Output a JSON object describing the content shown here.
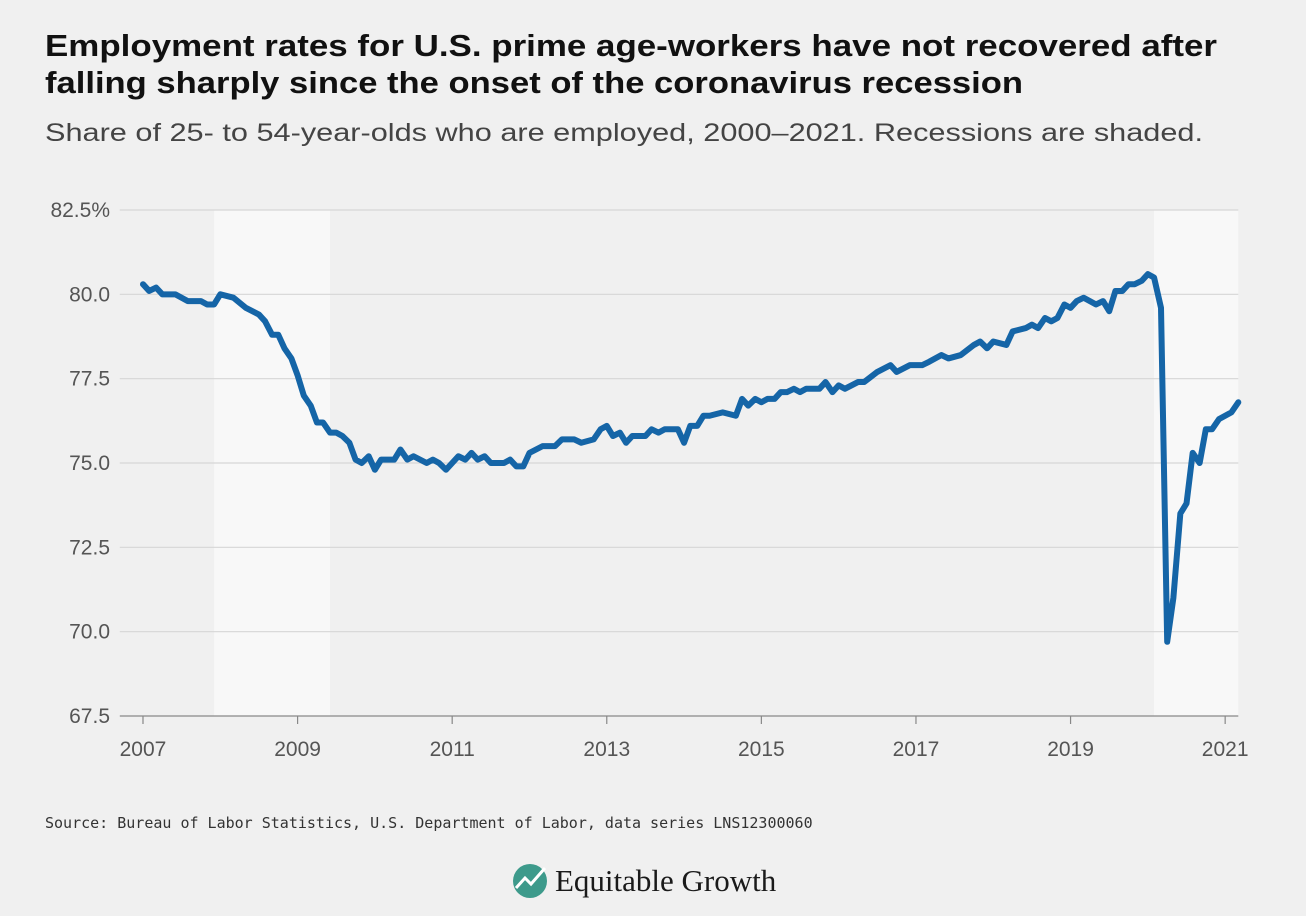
{
  "chart_data": {
    "type": "line",
    "title": [
      "Employment rates for U.S. prime age-workers have not recovered after",
      "falling sharply since the onset of the coronavirus recession"
    ],
    "subtitle": "Share of 25- to 54-year-olds who are employed, 2000–2021. Recessions are shaded.",
    "source": "Source: Bureau of Labor Statistics, U.S. Department of Labor, data series LNS12300060",
    "logo": "Equitable Growth",
    "color": "#1565a7",
    "grid": true,
    "xlim": [
      2006.7,
      2021.17
    ],
    "xticks": [
      2007,
      2009,
      2011,
      2013,
      2015,
      2017,
      2019,
      2021
    ],
    "ylim": [
      67.5,
      82.5
    ],
    "yticks": [
      67.5,
      {
        "value": 70,
        "label": "70.0"
      },
      72.5,
      {
        "value": 75,
        "label": "75.0"
      },
      77.5,
      {
        "value": 80,
        "label": "80.0"
      },
      {
        "value": 82.5,
        "label": "82.5%"
      }
    ],
    "recessions": [
      [
        2007.92,
        2009.42
      ],
      [
        2020.08,
        2021.17
      ]
    ],
    "x": [
      2007.0,
      2007.08,
      2007.17,
      2007.25,
      2007.42,
      2007.58,
      2007.75,
      2007.83,
      2007.92,
      2008.0,
      2008.17,
      2008.33,
      2008.5,
      2008.58,
      2008.67,
      2008.75,
      2008.83,
      2008.92,
      2009.0,
      2009.08,
      2009.17,
      2009.25,
      2009.33,
      2009.42,
      2009.5,
      2009.58,
      2009.67,
      2009.75,
      2009.83,
      2009.92,
      2010.0,
      2010.08,
      2010.25,
      2010.33,
      2010.42,
      2010.5,
      2010.67,
      2010.75,
      2010.83,
      2010.92,
      2011.0,
      2011.08,
      2011.17,
      2011.25,
      2011.33,
      2011.42,
      2011.5,
      2011.67,
      2011.75,
      2011.83,
      2011.92,
      2012.0,
      2012.17,
      2012.33,
      2012.42,
      2012.58,
      2012.67,
      2012.83,
      2012.92,
      2013.0,
      2013.08,
      2013.17,
      2013.25,
      2013.33,
      2013.5,
      2013.58,
      2013.67,
      2013.75,
      2013.92,
      2014.0,
      2014.08,
      2014.17,
      2014.25,
      2014.33,
      2014.5,
      2014.67,
      2014.75,
      2014.83,
      2014.92,
      2015.0,
      2015.08,
      2015.17,
      2015.25,
      2015.33,
      2015.42,
      2015.5,
      2015.58,
      2015.75,
      2015.83,
      2015.92,
      2016.0,
      2016.08,
      2016.25,
      2016.33,
      2016.5,
      2016.67,
      2016.75,
      2016.92,
      2017.08,
      2017.17,
      2017.33,
      2017.42,
      2017.58,
      2017.75,
      2017.83,
      2017.92,
      2018.0,
      2018.17,
      2018.25,
      2018.42,
      2018.5,
      2018.58,
      2018.67,
      2018.75,
      2018.83,
      2018.92,
      2019.0,
      2019.08,
      2019.17,
      2019.25,
      2019.33,
      2019.42,
      2019.5,
      2019.58,
      2019.67,
      2019.75,
      2019.83,
      2019.92,
      2020.0,
      2020.08,
      2020.17,
      2020.25,
      2020.33,
      2020.42,
      2020.5,
      2020.58,
      2020.67,
      2020.75,
      2020.83,
      2020.92,
      2021.0,
      2021.08,
      2021.17
    ],
    "values": [
      80.3,
      80.1,
      80.2,
      80.0,
      80.0,
      79.8,
      79.8,
      79.7,
      79.7,
      80.0,
      79.9,
      79.6,
      79.4,
      79.2,
      78.8,
      78.8,
      78.4,
      78.1,
      77.6,
      77.0,
      76.7,
      76.2,
      76.2,
      75.9,
      75.9,
      75.8,
      75.6,
      75.1,
      75.0,
      75.2,
      74.8,
      75.1,
      75.1,
      75.4,
      75.1,
      75.2,
      75.0,
      75.1,
      75.0,
      74.8,
      75.0,
      75.2,
      75.1,
      75.3,
      75.1,
      75.2,
      75.0,
      75.0,
      75.1,
      74.9,
      74.9,
      75.3,
      75.5,
      75.5,
      75.7,
      75.7,
      75.6,
      75.7,
      76.0,
      76.1,
      75.8,
      75.9,
      75.6,
      75.8,
      75.8,
      76.0,
      75.9,
      76.0,
      76.0,
      75.6,
      76.1,
      76.1,
      76.4,
      76.4,
      76.5,
      76.4,
      76.9,
      76.7,
      76.9,
      76.8,
      76.9,
      76.9,
      77.1,
      77.1,
      77.2,
      77.1,
      77.2,
      77.2,
      77.4,
      77.1,
      77.3,
      77.2,
      77.4,
      77.4,
      77.7,
      77.9,
      77.7,
      77.9,
      77.9,
      78.0,
      78.2,
      78.1,
      78.2,
      78.5,
      78.6,
      78.4,
      78.6,
      78.5,
      78.9,
      79.0,
      79.1,
      79.0,
      79.3,
      79.2,
      79.3,
      79.7,
      79.6,
      79.8,
      79.9,
      79.8,
      79.7,
      79.8,
      79.5,
      80.1,
      80.1,
      80.3,
      80.3,
      80.4,
      80.6,
      80.5,
      79.6,
      69.7,
      71.0,
      73.5,
      73.8,
      75.3,
      75.0,
      76.0,
      76.0,
      76.3,
      76.4,
      76.5,
      76.8
    ]
  }
}
